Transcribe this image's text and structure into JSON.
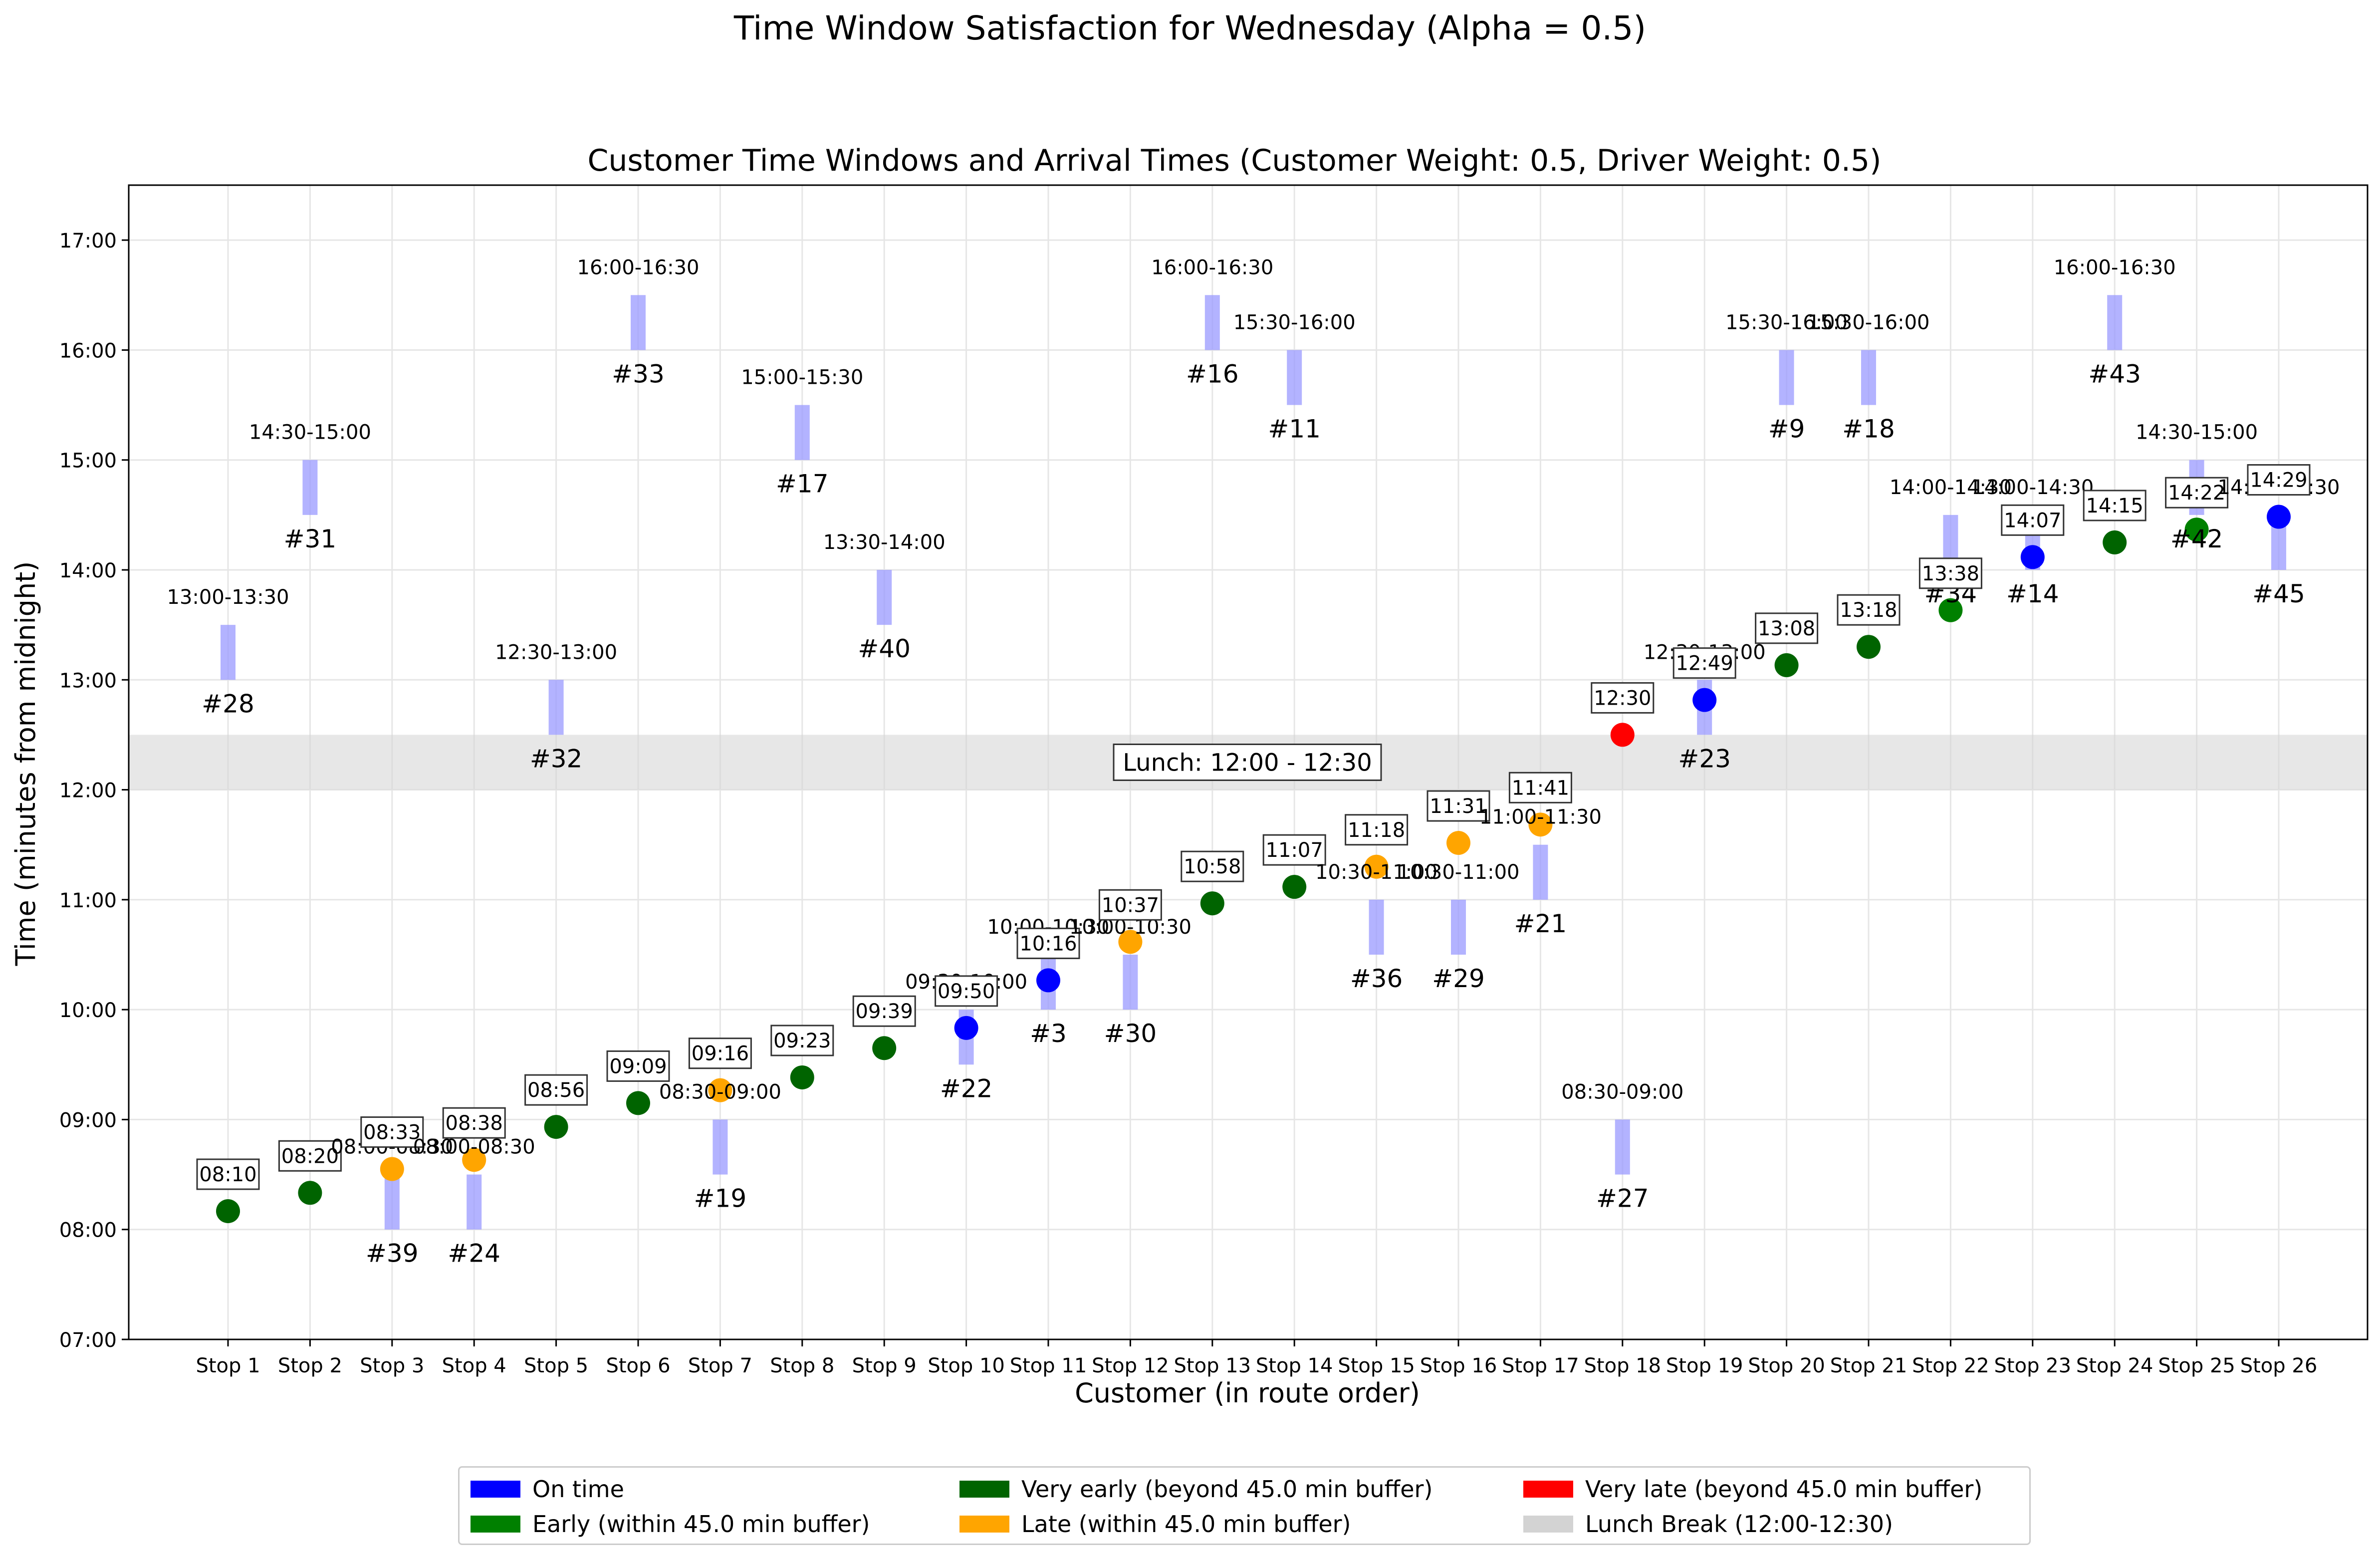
{
  "figure_title": "Time Window Satisfaction for Wednesday (Alpha = 0.5)",
  "colors": {
    "on_time": "#0000ff",
    "early": "#008000",
    "very_early": "#006400",
    "late": "#ffa500",
    "very_late": "#ff0000",
    "lunch": "#d3d3d3",
    "window": "#9999ff"
  },
  "legend": [
    {
      "label": "On time",
      "color": "#0000ff"
    },
    {
      "label": "Very early (beyond 45.0 min buffer)",
      "color": "#006400"
    },
    {
      "label": "Very late (beyond 45.0 min buffer)",
      "color": "#ff0000"
    },
    {
      "label": "Early (within 45.0 min buffer)",
      "color": "#008000"
    },
    {
      "label": "Late (within 45.0 min buffer)",
      "color": "#ffa500"
    },
    {
      "label": "Lunch Break (12:00-12:30)",
      "color": "#d3d3d3"
    }
  ],
  "chart_data": {
    "type": "scatter",
    "title": "Customer Time Windows and Arrival Times (Customer Weight: 0.5, Driver Weight: 0.5)",
    "xlabel": "Customer (in route order)",
    "ylabel": "Time (minutes from midnight)",
    "ylim": [
      420,
      1050
    ],
    "yticks": [
      {
        "value": 420,
        "label": "07:00"
      },
      {
        "value": 480,
        "label": "08:00"
      },
      {
        "value": 540,
        "label": "09:00"
      },
      {
        "value": 600,
        "label": "10:00"
      },
      {
        "value": 660,
        "label": "11:00"
      },
      {
        "value": 720,
        "label": "12:00"
      },
      {
        "value": 780,
        "label": "13:00"
      },
      {
        "value": 840,
        "label": "14:00"
      },
      {
        "value": 900,
        "label": "15:00"
      },
      {
        "value": 960,
        "label": "16:00"
      },
      {
        "value": 1020,
        "label": "17:00"
      }
    ],
    "categories": [
      "Stop 1",
      "Stop 2",
      "Stop 3",
      "Stop 4",
      "Stop 5",
      "Stop 6",
      "Stop 7",
      "Stop 8",
      "Stop 9",
      "Stop 10",
      "Stop 11",
      "Stop 12",
      "Stop 13",
      "Stop 14",
      "Stop 15",
      "Stop 16",
      "Stop 17",
      "Stop 18",
      "Stop 19",
      "Stop 20",
      "Stop 21",
      "Stop 22",
      "Stop 23",
      "Stop 24",
      "Stop 25",
      "Stop 26"
    ],
    "grid": true,
    "lunch": {
      "start": 720,
      "end": 750,
      "label": "Lunch: 12:00 - 12:30"
    },
    "stops": [
      {
        "stop": 1,
        "customer": "#28",
        "window": [
          780,
          810
        ],
        "window_label": "13:00-13:30",
        "arrival": 490,
        "arrival_label": "08:10",
        "status": "very_early"
      },
      {
        "stop": 2,
        "customer": "#31",
        "window": [
          870,
          900
        ],
        "window_label": "14:30-15:00",
        "arrival": 500,
        "arrival_label": "08:20",
        "status": "very_early"
      },
      {
        "stop": 3,
        "customer": "#39",
        "window": [
          480,
          510
        ],
        "window_label": "08:00-08:30",
        "arrival": 513,
        "arrival_label": "08:33",
        "status": "late"
      },
      {
        "stop": 4,
        "customer": "#24",
        "window": [
          480,
          510
        ],
        "window_label": "08:00-08:30",
        "arrival": 518,
        "arrival_label": "08:38",
        "status": "late"
      },
      {
        "stop": 5,
        "customer": "#32",
        "window": [
          750,
          780
        ],
        "window_label": "12:30-13:00",
        "arrival": 536,
        "arrival_label": "08:56",
        "status": "very_early"
      },
      {
        "stop": 6,
        "customer": "#33",
        "window": [
          960,
          990
        ],
        "window_label": "16:00-16:30",
        "arrival": 549,
        "arrival_label": "09:09",
        "status": "very_early"
      },
      {
        "stop": 7,
        "customer": "#19",
        "window": [
          510,
          540
        ],
        "window_label": "08:30-09:00",
        "arrival": 556,
        "arrival_label": "09:16",
        "status": "late"
      },
      {
        "stop": 8,
        "customer": "#17",
        "window": [
          900,
          930
        ],
        "window_label": "15:00-15:30",
        "arrival": 563,
        "arrival_label": "09:23",
        "status": "very_early"
      },
      {
        "stop": 9,
        "customer": "#40",
        "window": [
          810,
          840
        ],
        "window_label": "13:30-14:00",
        "arrival": 579,
        "arrival_label": "09:39",
        "status": "very_early"
      },
      {
        "stop": 10,
        "customer": "#22",
        "window": [
          570,
          600
        ],
        "window_label": "09:30-10:00",
        "arrival": 590,
        "arrival_label": "09:50",
        "status": "on_time"
      },
      {
        "stop": 11,
        "customer": "#3",
        "window": [
          600,
          630
        ],
        "window_label": "10:00-10:30",
        "arrival": 616,
        "arrival_label": "10:16",
        "status": "on_time"
      },
      {
        "stop": 12,
        "customer": "#30",
        "window": [
          600,
          630
        ],
        "window_label": "10:00-10:30",
        "arrival": 637,
        "arrival_label": "10:37",
        "status": "late"
      },
      {
        "stop": 13,
        "customer": "#16",
        "window": [
          960,
          990
        ],
        "window_label": "16:00-16:30",
        "arrival": 658,
        "arrival_label": "10:58",
        "status": "very_early"
      },
      {
        "stop": 14,
        "customer": "#11",
        "window": [
          930,
          960
        ],
        "window_label": "15:30-16:00",
        "arrival": 667,
        "arrival_label": "11:07",
        "status": "very_early"
      },
      {
        "stop": 15,
        "customer": "#36",
        "window": [
          630,
          660
        ],
        "window_label": "10:30-11:00",
        "arrival": 678,
        "arrival_label": "11:18",
        "status": "late"
      },
      {
        "stop": 16,
        "customer": "#29",
        "window": [
          630,
          660
        ],
        "window_label": "10:30-11:00",
        "arrival": 691,
        "arrival_label": "11:31",
        "status": "late"
      },
      {
        "stop": 17,
        "customer": "#21",
        "window": [
          660,
          690
        ],
        "window_label": "11:00-11:30",
        "arrival": 701,
        "arrival_label": "11:41",
        "status": "late"
      },
      {
        "stop": 18,
        "customer": "#27",
        "window": [
          510,
          540
        ],
        "window_label": "08:30-09:00",
        "arrival": 750,
        "arrival_label": "12:30",
        "status": "very_late"
      },
      {
        "stop": 19,
        "customer": "#23",
        "window": [
          750,
          780
        ],
        "window_label": "12:30-13:00",
        "arrival": 769,
        "arrival_label": "12:49",
        "status": "on_time"
      },
      {
        "stop": 20,
        "customer": "#9",
        "window": [
          930,
          960
        ],
        "window_label": "15:30-16:00",
        "arrival": 788,
        "arrival_label": "13:08",
        "status": "very_early"
      },
      {
        "stop": 21,
        "customer": "#18",
        "window": [
          930,
          960
        ],
        "window_label": "15:30-16:00",
        "arrival": 798,
        "arrival_label": "13:18",
        "status": "very_early"
      },
      {
        "stop": 22,
        "customer": "#34",
        "window": [
          840,
          870
        ],
        "window_label": "14:00-14:30",
        "arrival": 818,
        "arrival_label": "13:38",
        "status": "early"
      },
      {
        "stop": 23,
        "customer": "#14",
        "window": [
          840,
          870
        ],
        "window_label": "14:00-14:30",
        "arrival": 847,
        "arrival_label": "14:07",
        "status": "on_time"
      },
      {
        "stop": 24,
        "customer": "#43",
        "window": [
          960,
          990
        ],
        "window_label": "16:00-16:30",
        "arrival": 855,
        "arrival_label": "14:15",
        "status": "very_early"
      },
      {
        "stop": 25,
        "customer": "#42",
        "window": [
          870,
          900
        ],
        "window_label": "14:30-15:00",
        "arrival": 862,
        "arrival_label": "14:22",
        "status": "early"
      },
      {
        "stop": 26,
        "customer": "#45",
        "window": [
          840,
          870
        ],
        "window_label": "14:00-14:30",
        "arrival": 869,
        "arrival_label": "14:29",
        "status": "on_time"
      }
    ]
  }
}
